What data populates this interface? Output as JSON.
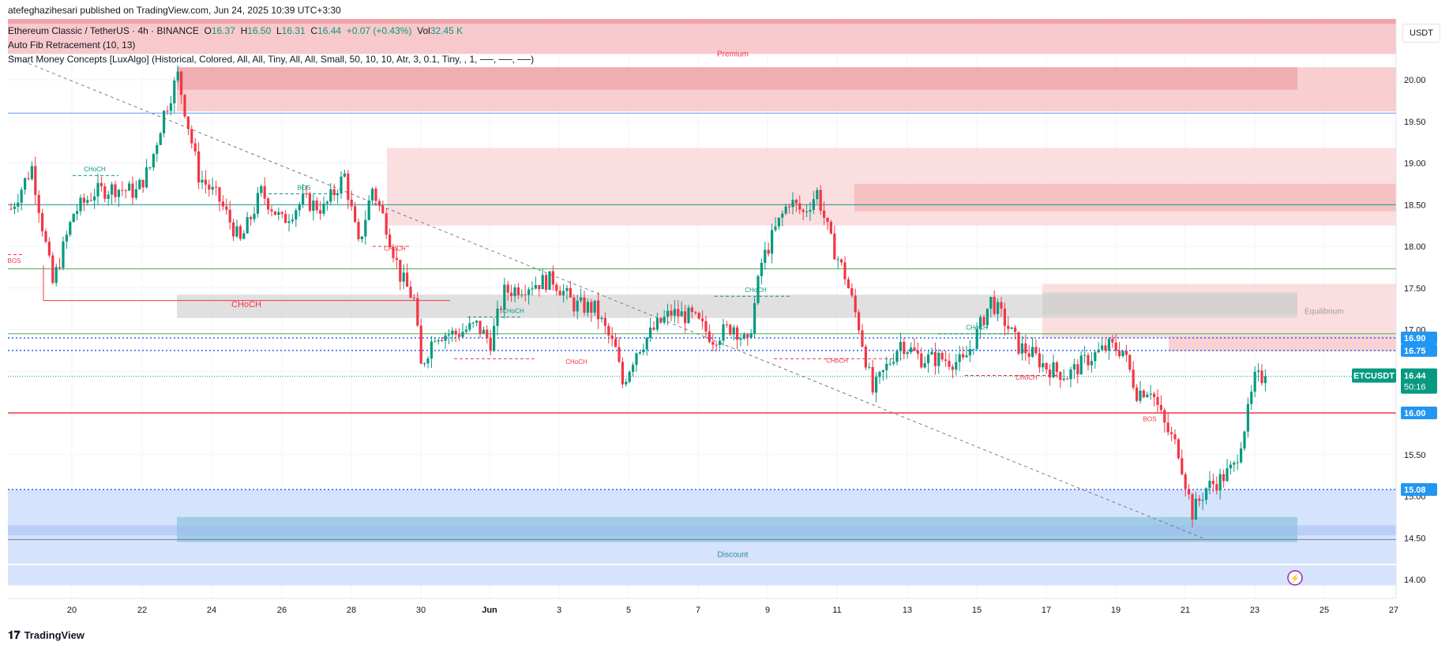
{
  "publisher_line": "atefeghazihesari published on TradingView.com, Jun 24, 2025 10:39 UTC+3:30",
  "symbol": {
    "title": "Ethereum Classic / TetherUS · 4h · BINANCE",
    "o_label": "O",
    "o": "16.37",
    "h_label": "H",
    "h": "16.50",
    "l_label": "L",
    "l": "16.31",
    "c_label": "C",
    "c": "16.44",
    "change": "+0.07 (+0.43%)",
    "vol_label": "Vol",
    "vol": "32.45 K"
  },
  "indicators": [
    "Auto Fib Retracement (10, 13)",
    "Smart Money Concepts [LuxAlgo] (Historical, Colored, All, All, Tiny, All, All, Small, 50, 10, 10, Atr, 3, 0.1, Tiny, , 1, ──, ──, ──)"
  ],
  "currency": "USDT",
  "footer_brand": "TradingView",
  "colors": {
    "up": "#089981",
    "down": "#f23645",
    "premium": "#f23645",
    "discount": "#2962ff",
    "equilibrium": "#bdbdbd",
    "price_tag": "#2196f3"
  },
  "chart_data": {
    "type": "candlestick",
    "y_ticks": [
      "20.50",
      "20.00",
      "19.50",
      "19.00",
      "18.50",
      "18.00",
      "17.50",
      "17.00",
      "16.50",
      "16.00",
      "15.50",
      "15.00",
      "14.50",
      "14.00"
    ],
    "ylim": [
      13.88,
      20.78
    ],
    "x_ticks": [
      "20",
      "22",
      "24",
      "26",
      "28",
      "30",
      "Jun",
      "3",
      "5",
      "7",
      "9",
      "11",
      "13",
      "15",
      "17",
      "19",
      "21",
      "23",
      "25",
      "27"
    ],
    "price_labels": [
      {
        "text": "16.90",
        "y": 16.9,
        "color": "#2196f3"
      },
      {
        "text": "16.75",
        "y": 16.75,
        "color": "#2196f3"
      },
      {
        "text": "16.44",
        "y": 16.44,
        "color": "#089981",
        "symbol": "ETCUSDT",
        "countdown": "50:16"
      },
      {
        "text": "16.00",
        "y": 16.0,
        "color": "#2196f3"
      },
      {
        "text": "15.08",
        "y": 15.08,
        "color": "#2196f3"
      }
    ],
    "zone_labels": {
      "premium": "Premium",
      "equilibrium": "Equilibrium",
      "discount": "Discount"
    },
    "structure_labels": [
      {
        "text": "CHoCH",
        "color": "#089981"
      },
      {
        "text": "BOS",
        "color": "#089981"
      },
      {
        "text": "BOS",
        "color": "#f23645"
      },
      {
        "text": "CHoCH",
        "color": "#f23645"
      },
      {
        "text": "CHoCH",
        "color": "#f23645"
      },
      {
        "text": "CHoCH",
        "color": "#089981"
      },
      {
        "text": "CHoCH",
        "color": "#f23645"
      },
      {
        "text": "CHoCH",
        "color": "#089981"
      },
      {
        "text": "CHoCH",
        "color": "#f23645"
      },
      {
        "text": "CHoCH",
        "color": "#089981"
      },
      {
        "text": "CHoCH",
        "color": "#f23645"
      },
      {
        "text": "BOS",
        "color": "#f23645"
      }
    ],
    "waypoints": [
      [
        0,
        18.45
      ],
      [
        6,
        18.95
      ],
      [
        12,
        17.55
      ],
      [
        18,
        18.4
      ],
      [
        24,
        18.65
      ],
      [
        30,
        18.7
      ],
      [
        36,
        18.65
      ],
      [
        40,
        18.95
      ],
      [
        44,
        19.6
      ],
      [
        48,
        20.05
      ],
      [
        50,
        19.65
      ],
      [
        54,
        18.85
      ],
      [
        60,
        18.55
      ],
      [
        66,
        18.05
      ],
      [
        72,
        18.65
      ],
      [
        78,
        18.3
      ],
      [
        84,
        18.55
      ],
      [
        90,
        18.45
      ],
      [
        96,
        18.85
      ],
      [
        100,
        18.0
      ],
      [
        104,
        18.7
      ],
      [
        108,
        18.25
      ],
      [
        112,
        17.65
      ],
      [
        116,
        17.35
      ],
      [
        118,
        16.55
      ],
      [
        122,
        16.95
      ],
      [
        128,
        16.95
      ],
      [
        134,
        17.05
      ],
      [
        138,
        16.85
      ],
      [
        142,
        17.45
      ],
      [
        146,
        17.5
      ],
      [
        150,
        17.55
      ],
      [
        156,
        17.6
      ],
      [
        162,
        17.3
      ],
      [
        168,
        17.25
      ],
      [
        174,
        16.75
      ],
      [
        176,
        16.35
      ],
      [
        180,
        16.75
      ],
      [
        186,
        17.05
      ],
      [
        190,
        17.2
      ],
      [
        196,
        17.15
      ],
      [
        202,
        16.9
      ],
      [
        208,
        17.05
      ],
      [
        212,
        16.8
      ],
      [
        216,
        17.8
      ],
      [
        220,
        18.2
      ],
      [
        224,
        18.55
      ],
      [
        228,
        18.4
      ],
      [
        232,
        18.65
      ],
      [
        236,
        18.05
      ],
      [
        240,
        17.65
      ],
      [
        244,
        17.05
      ],
      [
        248,
        16.25
      ],
      [
        252,
        16.55
      ],
      [
        256,
        16.85
      ],
      [
        262,
        16.65
      ],
      [
        268,
        16.65
      ],
      [
        274,
        16.6
      ],
      [
        278,
        16.95
      ],
      [
        282,
        17.35
      ],
      [
        286,
        17.1
      ],
      [
        290,
        16.8
      ],
      [
        294,
        16.7
      ],
      [
        298,
        16.55
      ],
      [
        304,
        16.45
      ],
      [
        310,
        16.65
      ],
      [
        316,
        16.8
      ],
      [
        320,
        16.75
      ],
      [
        324,
        16.25
      ],
      [
        328,
        16.3
      ],
      [
        332,
        15.85
      ],
      [
        336,
        15.55
      ],
      [
        340,
        14.8
      ],
      [
        344,
        15.1
      ],
      [
        348,
        15.2
      ],
      [
        352,
        15.35
      ],
      [
        356,
        16.0
      ],
      [
        358,
        16.4
      ],
      [
        361,
        16.44
      ]
    ],
    "trendline": {
      "from": [
        0,
        20.28
      ],
      "to": [
        344,
        14.48
      ]
    },
    "horizontal_levels": [
      19.6,
      18.5,
      17.73,
      16.95,
      16.9,
      16.75,
      16.44,
      16.0,
      15.08,
      14.48
    ]
  }
}
